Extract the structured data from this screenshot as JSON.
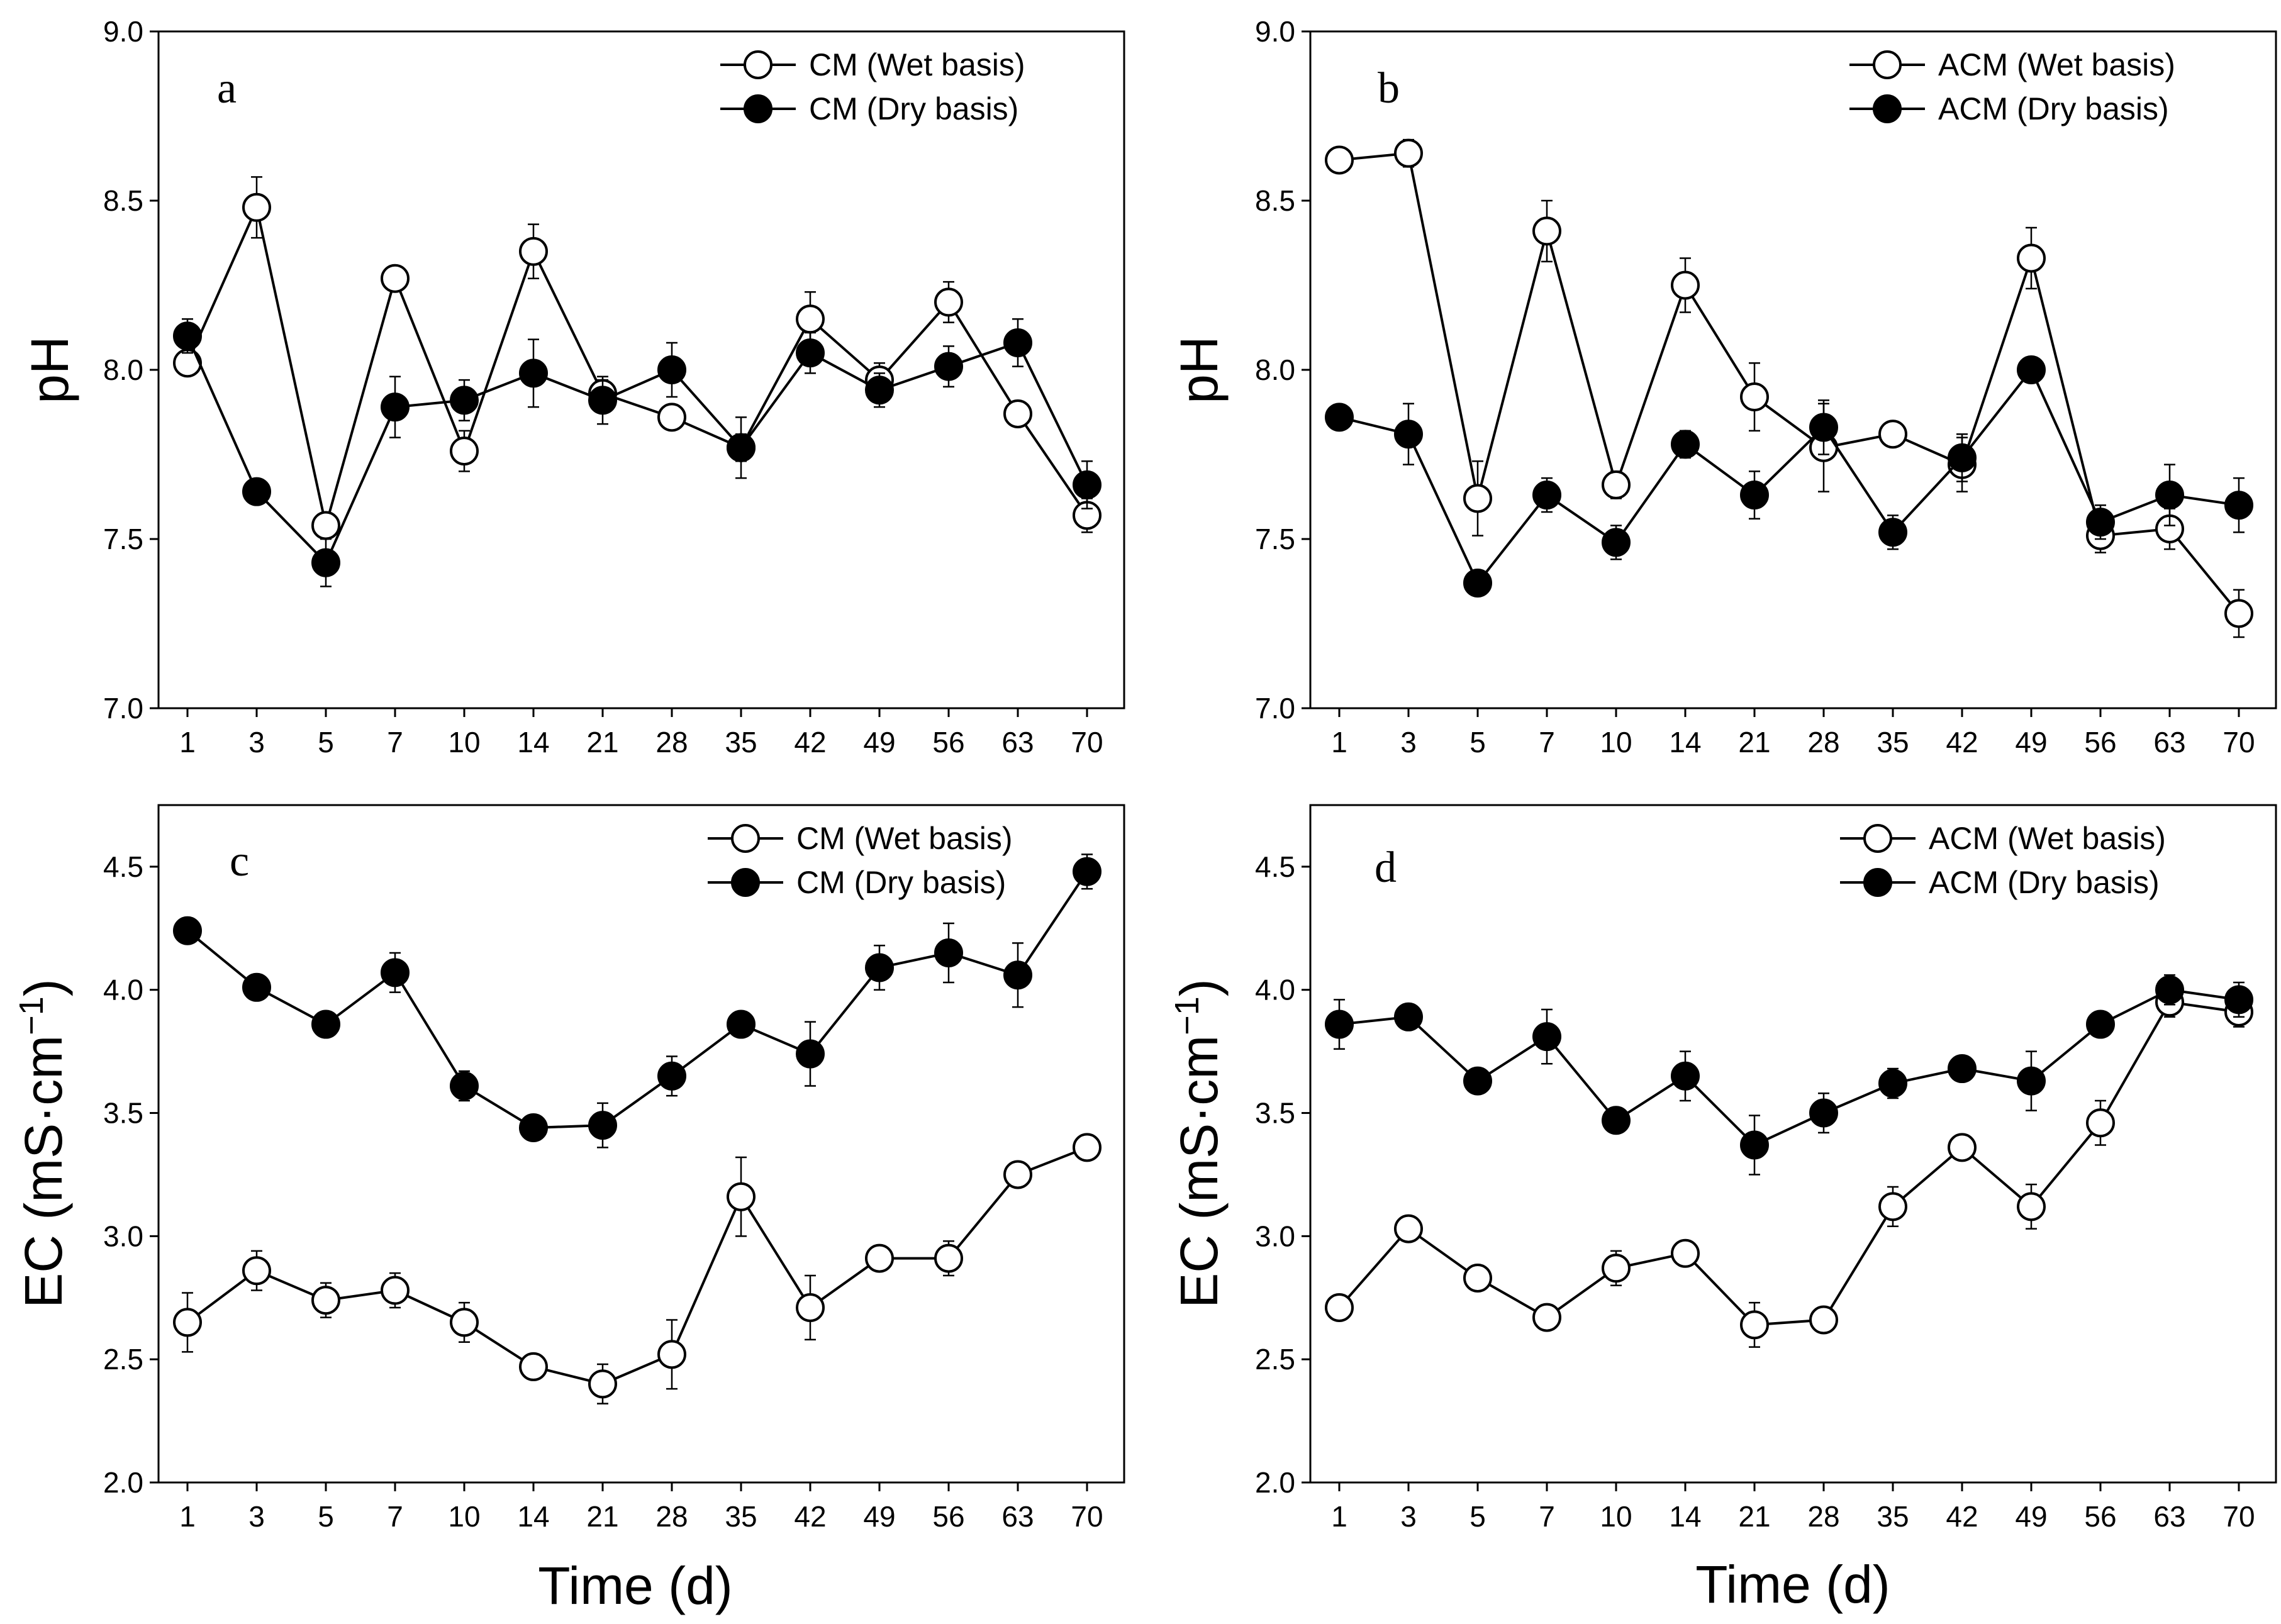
{
  "figure": {
    "xlabel": "Time (d)",
    "colors": {
      "axis": "#000000",
      "line": "#000000",
      "open_marker": "#ffffff",
      "filled_marker": "#000000"
    }
  },
  "chart_data": [
    {
      "type": "line",
      "panel": "a",
      "ylabel": "pH",
      "ylim": [
        7.0,
        9.0
      ],
      "yticks": [
        7.0,
        7.5,
        8.0,
        8.5,
        9.0
      ],
      "ytick_labels": [
        "7.0",
        "7.5",
        "8.0",
        "8.5",
        "9.0"
      ],
      "categories": [
        "1",
        "3",
        "5",
        "7",
        "10",
        "14",
        "21",
        "28",
        "35",
        "42",
        "49",
        "56",
        "63",
        "70"
      ],
      "legend_position": "top-right",
      "series": [
        {
          "name": "CM (Wet basis)",
          "marker": "open",
          "values": [
            8.02,
            8.48,
            7.54,
            8.27,
            7.76,
            8.35,
            7.93,
            7.86,
            7.77,
            8.15,
            7.97,
            8.2,
            7.87,
            7.57
          ],
          "errors": [
            0.02,
            0.09,
            0.03,
            0.02,
            0.06,
            0.08,
            0.04,
            0.02,
            0.09,
            0.08,
            0.05,
            0.06,
            0.02,
            0.05
          ]
        },
        {
          "name": "CM (Dry basis)",
          "marker": "filled",
          "values": [
            8.1,
            7.64,
            7.43,
            7.89,
            7.91,
            7.99,
            7.91,
            8.0,
            7.77,
            8.05,
            7.94,
            8.01,
            8.08,
            7.66
          ],
          "errors": [
            0.05,
            0.02,
            0.07,
            0.09,
            0.06,
            0.1,
            0.07,
            0.08,
            0.04,
            0.06,
            0.05,
            0.06,
            0.07,
            0.07
          ]
        }
      ]
    },
    {
      "type": "line",
      "panel": "b",
      "ylabel": "pH",
      "ylim": [
        7.0,
        9.0
      ],
      "yticks": [
        7.0,
        7.5,
        8.0,
        8.5,
        9.0
      ],
      "ytick_labels": [
        "7.0",
        "7.5",
        "8.0",
        "8.5",
        "9.0"
      ],
      "categories": [
        "1",
        "3",
        "5",
        "7",
        "10",
        "14",
        "21",
        "28",
        "35",
        "42",
        "49",
        "56",
        "63",
        "70"
      ],
      "legend_position": "top-right",
      "series": [
        {
          "name": "ACM (Wet basis)",
          "marker": "open",
          "values": [
            8.62,
            8.64,
            7.62,
            8.41,
            7.66,
            8.25,
            7.92,
            7.77,
            7.81,
            7.72,
            8.33,
            7.51,
            7.53,
            7.28
          ],
          "errors": [
            0.02,
            0.04,
            0.11,
            0.09,
            0.04,
            0.08,
            0.1,
            0.13,
            0.02,
            0.08,
            0.09,
            0.05,
            0.06,
            0.07
          ]
        },
        {
          "name": "ACM (Dry basis)",
          "marker": "filled",
          "values": [
            7.86,
            7.81,
            7.37,
            7.63,
            7.49,
            7.78,
            7.63,
            7.83,
            7.52,
            7.74,
            8.0,
            7.55,
            7.63,
            7.6
          ],
          "errors": [
            0.03,
            0.09,
            0.02,
            0.05,
            0.05,
            0.04,
            0.07,
            0.08,
            0.05,
            0.07,
            0.02,
            0.05,
            0.09,
            0.08
          ]
        }
      ]
    },
    {
      "type": "line",
      "panel": "c",
      "ylabel": "EC (mS·cm",
      "ylabel_sup": "−1",
      "ylabel_close": ")",
      "ylim": [
        2.0,
        4.75
      ],
      "yticks": [
        2.0,
        2.5,
        3.0,
        3.5,
        4.0,
        4.5
      ],
      "ytick_labels": [
        "2.0",
        "2.5",
        "3.0",
        "3.5",
        "4.0",
        "4.5"
      ],
      "categories": [
        "1",
        "3",
        "5",
        "7",
        "10",
        "14",
        "21",
        "28",
        "35",
        "42",
        "49",
        "56",
        "63",
        "70"
      ],
      "legend_position": "top-right",
      "series": [
        {
          "name": "CM (Wet basis)",
          "marker": "open",
          "values": [
            2.65,
            2.86,
            2.74,
            2.78,
            2.65,
            2.47,
            2.4,
            2.52,
            3.16,
            2.71,
            2.91,
            2.91,
            3.25,
            3.36
          ],
          "errors": [
            0.12,
            0.08,
            0.07,
            0.07,
            0.08,
            0.03,
            0.08,
            0.14,
            0.16,
            0.13,
            0.05,
            0.07,
            0.05,
            0.03
          ]
        },
        {
          "name": "CM (Dry basis)",
          "marker": "filled",
          "values": [
            4.24,
            4.01,
            3.86,
            4.07,
            3.61,
            3.44,
            3.45,
            3.65,
            3.86,
            3.74,
            4.09,
            4.15,
            4.06,
            4.48
          ],
          "errors": [
            0.02,
            0.03,
            0.05,
            0.08,
            0.06,
            0.02,
            0.09,
            0.08,
            0.03,
            0.13,
            0.09,
            0.12,
            0.13,
            0.07
          ]
        }
      ]
    },
    {
      "type": "line",
      "panel": "d",
      "ylabel": "EC (mS·cm",
      "ylabel_sup": "−1",
      "ylabel_close": ")",
      "ylim": [
        2.0,
        4.75
      ],
      "yticks": [
        2.0,
        2.5,
        3.0,
        3.5,
        4.0,
        4.5
      ],
      "ytick_labels": [
        "2.0",
        "2.5",
        "3.0",
        "3.5",
        "4.0",
        "4.5"
      ],
      "categories": [
        "1",
        "3",
        "5",
        "7",
        "10",
        "14",
        "21",
        "28",
        "35",
        "42",
        "49",
        "56",
        "63",
        "70"
      ],
      "legend_position": "top-right",
      "series": [
        {
          "name": "ACM (Wet basis)",
          "marker": "open",
          "values": [
            2.71,
            3.03,
            2.83,
            2.67,
            2.87,
            2.93,
            2.64,
            2.66,
            3.12,
            3.36,
            3.12,
            3.46,
            3.95,
            3.91
          ],
          "errors": [
            0.04,
            0.04,
            0.04,
            0.03,
            0.07,
            0.04,
            0.09,
            0.05,
            0.08,
            0.04,
            0.09,
            0.09,
            0.06,
            0.06
          ]
        },
        {
          "name": "ACM (Dry basis)",
          "marker": "filled",
          "values": [
            3.86,
            3.89,
            3.63,
            3.81,
            3.47,
            3.65,
            3.37,
            3.5,
            3.62,
            3.68,
            3.63,
            3.86,
            4.0,
            3.96
          ],
          "errors": [
            0.1,
            0.03,
            0.05,
            0.11,
            0.03,
            0.1,
            0.12,
            0.08,
            0.06,
            0.03,
            0.12,
            0.04,
            0.06,
            0.07
          ]
        }
      ]
    }
  ]
}
